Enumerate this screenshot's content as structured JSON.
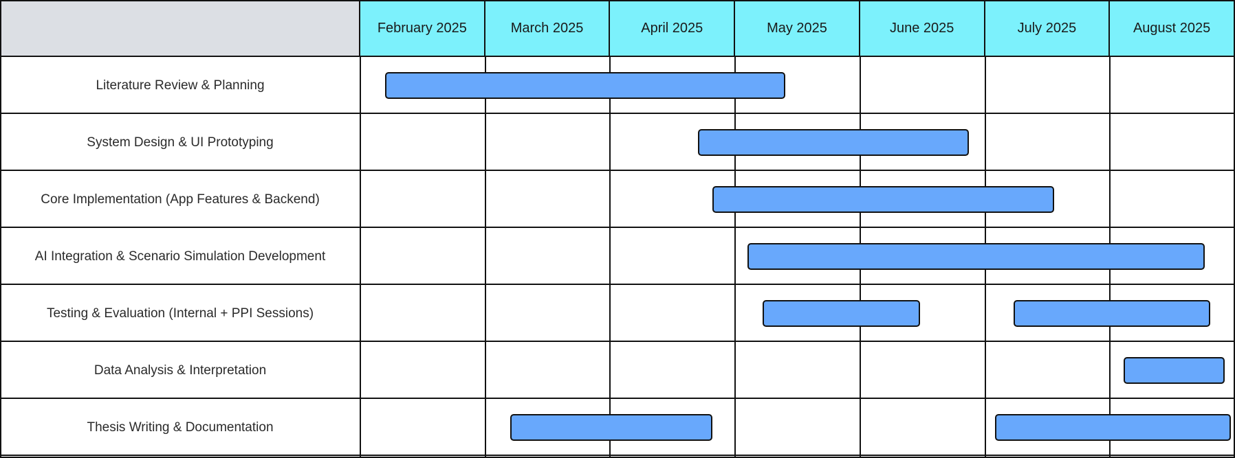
{
  "chart_data": {
    "type": "gantt",
    "title": "",
    "months": [
      "February 2025",
      "March 2025",
      "April 2025",
      "May 2025",
      "June 2025",
      "July 2025",
      "August 2025"
    ],
    "tasks": [
      {
        "name": "Literature Review & Planning",
        "segments": [
          {
            "start": 0.2,
            "end": 3.4
          }
        ]
      },
      {
        "name": "System Design & UI Prototyping",
        "segments": [
          {
            "start": 2.7,
            "end": 4.87
          }
        ]
      },
      {
        "name": "Core Implementation (App Features & Backend)",
        "segments": [
          {
            "start": 2.82,
            "end": 5.55
          }
        ]
      },
      {
        "name": "AI Integration & Scenario Simulation Development",
        "segments": [
          {
            "start": 3.1,
            "end": 6.76
          }
        ]
      },
      {
        "name": "Testing & Evaluation (Internal + PPI Sessions)",
        "segments": [
          {
            "start": 3.22,
            "end": 4.48
          },
          {
            "start": 5.23,
            "end": 6.8
          }
        ]
      },
      {
        "name": "Data Analysis & Interpretation",
        "segments": [
          {
            "start": 6.11,
            "end": 6.92
          }
        ]
      },
      {
        "name": "Thesis Writing & Documentation",
        "segments": [
          {
            "start": 1.2,
            "end": 2.82
          },
          {
            "start": 5.08,
            "end": 7.0
          }
        ]
      }
    ]
  },
  "colors": {
    "header_corner": "#dcdfe4",
    "month_header": "#7cf1fc",
    "bar_fill": "#68a8fc",
    "grid": "#111111"
  }
}
